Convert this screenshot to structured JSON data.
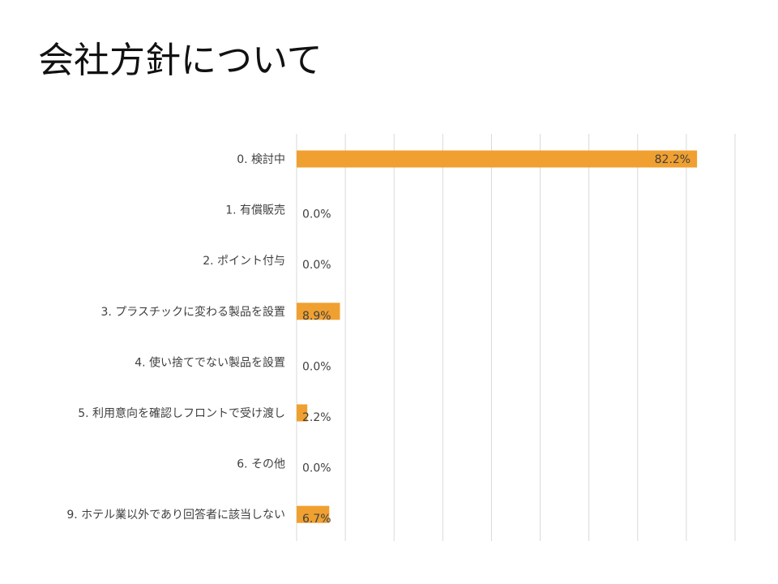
{
  "slide": {
    "title": "会社方針について"
  },
  "chart_data": {
    "type": "bar",
    "orientation": "horizontal",
    "categories": [
      "0. 検討中",
      "1. 有償販売",
      "2. ポイント付与",
      "3. プラスチックに変わる製品を設置",
      "4. 使い捨てでない製品を設置",
      "5. 利用意向を確認しフロントで受け渡し",
      "6. その他",
      "9. ホテル業以外であり回答者に該当しない"
    ],
    "values": [
      82.2,
      0.0,
      0.0,
      8.9,
      0.0,
      2.2,
      0.0,
      6.7
    ],
    "value_labels": [
      "82.2%",
      "0.0%",
      "0.0%",
      "8.9%",
      "0.0%",
      "2.2%",
      "0.0%",
      "6.7%"
    ],
    "unit": "%",
    "xlim": [
      0,
      90
    ],
    "grid": true,
    "bar_color": "#f0a030",
    "title": "",
    "xlabel": "",
    "ylabel": ""
  }
}
